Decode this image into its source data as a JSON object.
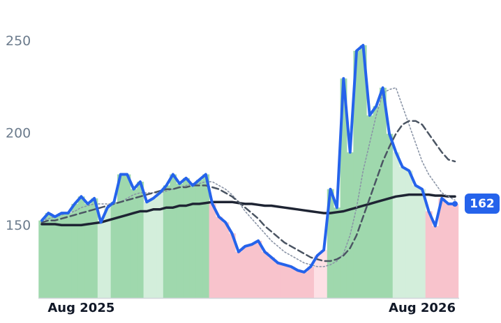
{
  "chart_data": {
    "type": "line",
    "categories": [
      null,
      null,
      null,
      null,
      null,
      null,
      "Aug 2025",
      null,
      null,
      null,
      null,
      null,
      null,
      null,
      null,
      null,
      null,
      null,
      null,
      null,
      null,
      null,
      null,
      null,
      null,
      null,
      null,
      null,
      null,
      null,
      null,
      null,
      null,
      null,
      null,
      null,
      null,
      null,
      null,
      null,
      null,
      null,
      null,
      null,
      null,
      null,
      null,
      null,
      null,
      null,
      null,
      null,
      null,
      null,
      null,
      null,
      null,
      null,
      "Aug 2026",
      null,
      null,
      null,
      null,
      null
    ],
    "series": [
      {
        "color": "#2563eb",
        "values": [
          153,
          157,
          155,
          157,
          157,
          162,
          166,
          162,
          165,
          152,
          160,
          163,
          178,
          178,
          170,
          174,
          163,
          165,
          168,
          172,
          178,
          173,
          176,
          172,
          175,
          178,
          162,
          155,
          152,
          146,
          136,
          139,
          140,
          142,
          136,
          133,
          130,
          129,
          128,
          126,
          125,
          128,
          134,
          137,
          170,
          160,
          230,
          190,
          245,
          248,
          210,
          215,
          225,
          200,
          190,
          182,
          180,
          172,
          170,
          158,
          150,
          165,
          162,
          162
        ]
      },
      {
        "color": "#8a94a6",
        "values": [
          153,
          154,
          155,
          156,
          157,
          158,
          160,
          161,
          162,
          162,
          162,
          162,
          163,
          165,
          167,
          168,
          168,
          168,
          168,
          169,
          170,
          171,
          172,
          173,
          173,
          174,
          174,
          172,
          170,
          167,
          163,
          158,
          154,
          150,
          146,
          142,
          139,
          136,
          134,
          132,
          130,
          129,
          128,
          128,
          129,
          131,
          135,
          145,
          160,
          180,
          195,
          210,
          222,
          224,
          225,
          215,
          205,
          195,
          185,
          178,
          173,
          168,
          166,
          164
        ]
      },
      {
        "color": "#4b5563",
        "values": [
          152,
          153,
          153,
          154,
          155,
          156,
          157,
          158,
          159,
          160,
          161,
          162,
          163,
          164,
          165,
          166,
          167,
          168,
          169,
          170,
          170,
          171,
          171,
          172,
          172,
          172,
          171,
          170,
          168,
          166,
          163,
          160,
          157,
          154,
          150,
          147,
          144,
          141,
          139,
          137,
          135,
          133,
          132,
          131,
          131,
          132,
          134,
          138,
          145,
          155,
          165,
          175,
          185,
          193,
          200,
          205,
          207,
          207,
          205,
          200,
          195,
          190,
          186,
          185
        ]
      },
      {
        "color": "#1e2433",
        "values": [
          151,
          151,
          151,
          150.5,
          150.5,
          150.5,
          150.5,
          151,
          151.5,
          152,
          153,
          154,
          155,
          156,
          157,
          158,
          158,
          159,
          159,
          160,
          160,
          161,
          161,
          162,
          162,
          162.5,
          163,
          163,
          163,
          163,
          162.5,
          162,
          162,
          161.5,
          161,
          161,
          160.5,
          160,
          159.5,
          159,
          158.5,
          158,
          157.5,
          157,
          157,
          157.5,
          158,
          159,
          160,
          161,
          162,
          163,
          164,
          165,
          166,
          166.5,
          167,
          167,
          167,
          167,
          166.5,
          166.5,
          166,
          166
        ]
      }
    ],
    "column_colors": {
      "strong_up": "#9fd8ad",
      "light_up": "#d3eedb",
      "strong_down": "#f8c3cc",
      "light_down": "#fde0e5"
    },
    "ylim": [
      111,
      265
    ],
    "yticks": [
      150,
      200,
      250
    ],
    "grid": false
  }
}
